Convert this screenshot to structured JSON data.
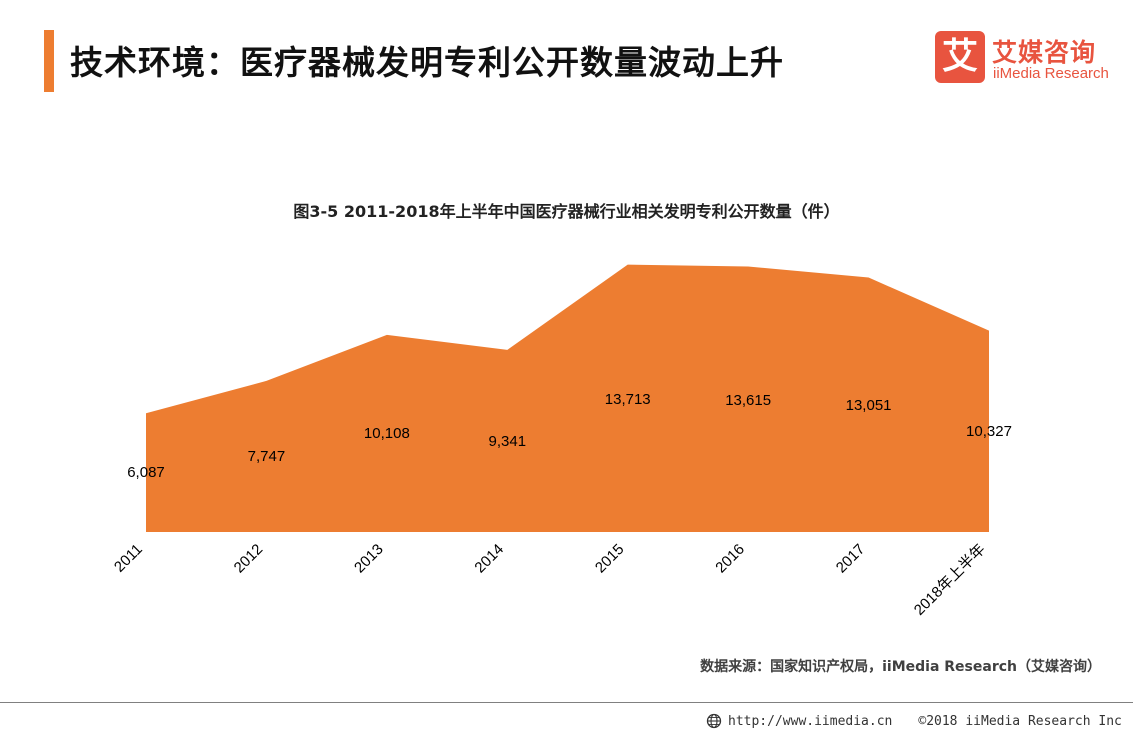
{
  "header": {
    "title": "技术环境：医疗器械发明专利公开数量波动上升"
  },
  "logo": {
    "mark": "艾",
    "cn": "艾媒咨询",
    "en": "iiMedia Research"
  },
  "colors": {
    "accent": "#ed7d31",
    "area": "#ed7d31",
    "logo": "#e8543f"
  },
  "chart_data": {
    "type": "area",
    "title": "图3-5 2011-2018年上半年中国医疗器械行业相关发明专利公开数量（件）",
    "categories": [
      "2011",
      "2012",
      "2013",
      "2014",
      "2015",
      "2016",
      "2017",
      "2018年上半年"
    ],
    "values": [
      6087,
      7747,
      10108,
      9341,
      13713,
      13615,
      13051,
      10327
    ],
    "value_labels": [
      "6,087",
      "7,747",
      "10,108",
      "9,341",
      "13,713",
      "13,615",
      "13,051",
      "10,327"
    ],
    "xlabel": "",
    "ylabel": "",
    "ylim": [
      0,
      14000
    ],
    "grid": false,
    "legend": "none"
  },
  "source": "数据来源：国家知识产权局，iiMedia Research（艾媒咨询）",
  "footer": {
    "url": "http://www.iimedia.cn",
    "copyright": "©2018  iiMedia Research  Inc"
  }
}
